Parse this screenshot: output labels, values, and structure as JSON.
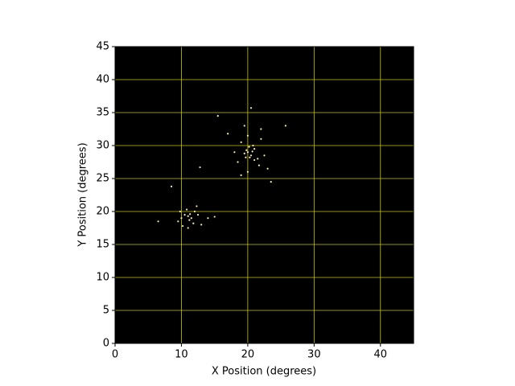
{
  "chart_data": {
    "type": "scatter",
    "xlabel": "X Position (degrees)",
    "ylabel": "Y Position (degrees)",
    "x": [
      20,
      20.5,
      19.8,
      20.3,
      21,
      19.5,
      20.8,
      21.5,
      19,
      22,
      18,
      20,
      19.5,
      22,
      17,
      20.5,
      25.7,
      12.8,
      15.5,
      23.5,
      21.7,
      22.5,
      18.5,
      20,
      23,
      19,
      21,
      20.2,
      19.7,
      20.7,
      11,
      11.5,
      10.5,
      11.2,
      10,
      12,
      11.8,
      9.5,
      10.8,
      12.5,
      6.5,
      8.5,
      11,
      13,
      10.2,
      12.3,
      9.8,
      14,
      15,
      11.3
    ],
    "values": [
      29,
      28.5,
      29.3,
      28.2,
      29.5,
      28.8,
      30,
      28,
      30.5,
      31,
      29,
      31.5,
      33,
      32.5,
      31.8,
      35.7,
      33,
      26.7,
      34.5,
      24.5,
      27,
      28.5,
      27.5,
      26,
      26.5,
      25.5,
      27.8,
      29.8,
      28.2,
      29.1,
      19.3,
      19,
      19.5,
      18.7,
      19,
      20,
      18.2,
      18.5,
      20.3,
      19.5,
      18.5,
      23.8,
      17.5,
      18,
      17.8,
      20.8,
      20,
      19,
      19.2,
      19.6
    ],
    "color": "#f7e9b8",
    "background": "#000000",
    "grid": true,
    "grid_color": "#c8c800",
    "xlim": [
      0,
      45
    ],
    "ylim": [
      0,
      45
    ],
    "xticks": [
      0,
      10,
      20,
      30,
      40
    ],
    "yticks": [
      0,
      5,
      10,
      15,
      20,
      25,
      30,
      35,
      40,
      45
    ]
  }
}
